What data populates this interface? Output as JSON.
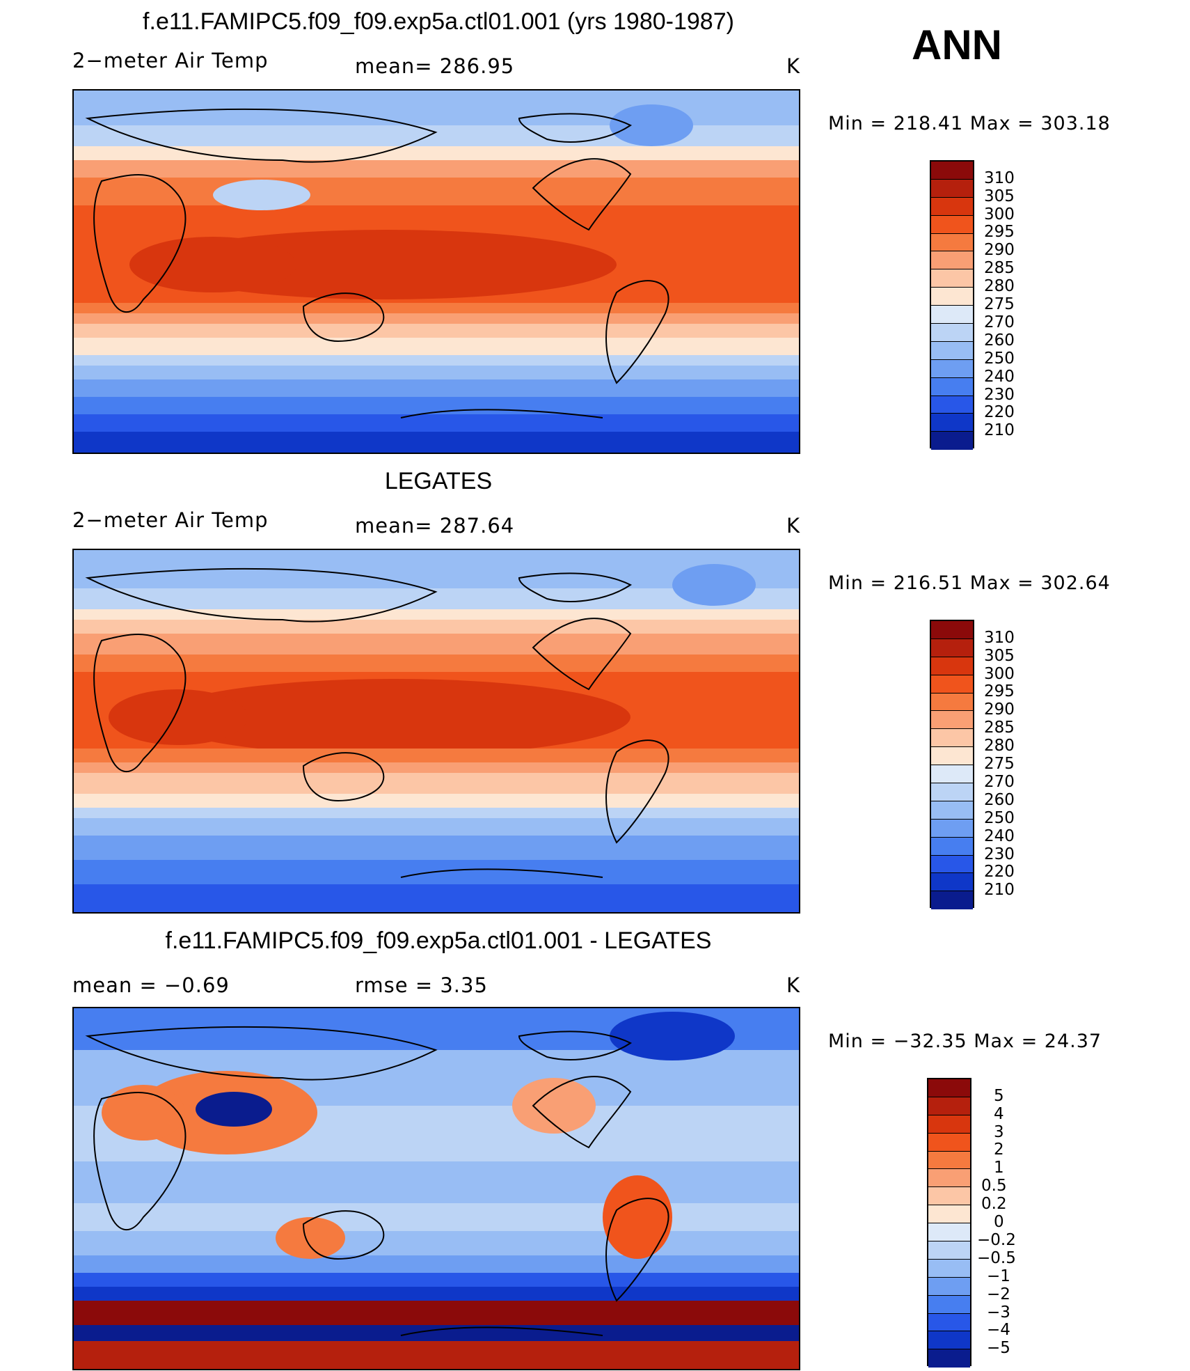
{
  "season": "ANN",
  "panels": [
    {
      "title": "f.e11.FAMIPC5.f09_f09.exp5a.ctl01.001 (yrs 1980-1987)",
      "left_label": "2−meter Air Temp",
      "center_label": "mean=  286.95",
      "units": "K",
      "minmax": "Min  =  218.41  Max  =  303.18",
      "colorbar_labels": [
        "310",
        "305",
        "300",
        "295",
        "290",
        "285",
        "280",
        "275",
        "270",
        "260",
        "250",
        "240",
        "230",
        "220",
        "210"
      ]
    },
    {
      "title": "LEGATES",
      "left_label": "2−meter Air Temp",
      "center_label": "mean=  287.64",
      "units": "K",
      "minmax": "Min  =  216.51  Max  =  302.64",
      "colorbar_labels": [
        "310",
        "305",
        "300",
        "295",
        "290",
        "285",
        "280",
        "275",
        "270",
        "260",
        "250",
        "240",
        "230",
        "220",
        "210"
      ]
    },
    {
      "title": "f.e11.FAMIPC5.f09_f09.exp5a.ctl01.001 - LEGATES",
      "left_label": "mean  =     −0.69",
      "center_label": "rmse  =     3.35",
      "units": "K",
      "minmax": "Min  =  −32.35  Max  =    24.37",
      "colorbar_labels": [
        "5",
        "4",
        "3",
        "2",
        "1",
        "0.5",
        "0.2",
        "0",
        "−0.2",
        "−0.5",
        "−1",
        "−2",
        "−3",
        "−4",
        "−5"
      ]
    }
  ],
  "colors": {
    "temp_scale": [
      "#8b0a0a",
      "#b5200d",
      "#d8360e",
      "#f0541c",
      "#f57a3f",
      "#f99f74",
      "#fcc6a6",
      "#fde6d2",
      "#dde9f8",
      "#bcd4f5",
      "#98bdf4",
      "#6e9ef2",
      "#477ef0",
      "#2857e8",
      "#0f37c8",
      "#0a1c8e"
    ],
    "diff_scale": [
      "#8b0a0a",
      "#b5200d",
      "#d8360e",
      "#f0541c",
      "#f57a3f",
      "#f99f74",
      "#fcc6a6",
      "#fde6d2",
      "#dde9f8",
      "#bcd4f5",
      "#98bdf4",
      "#6e9ef2",
      "#477ef0",
      "#2857e8",
      "#0f37c8",
      "#0a1c8e"
    ]
  }
}
